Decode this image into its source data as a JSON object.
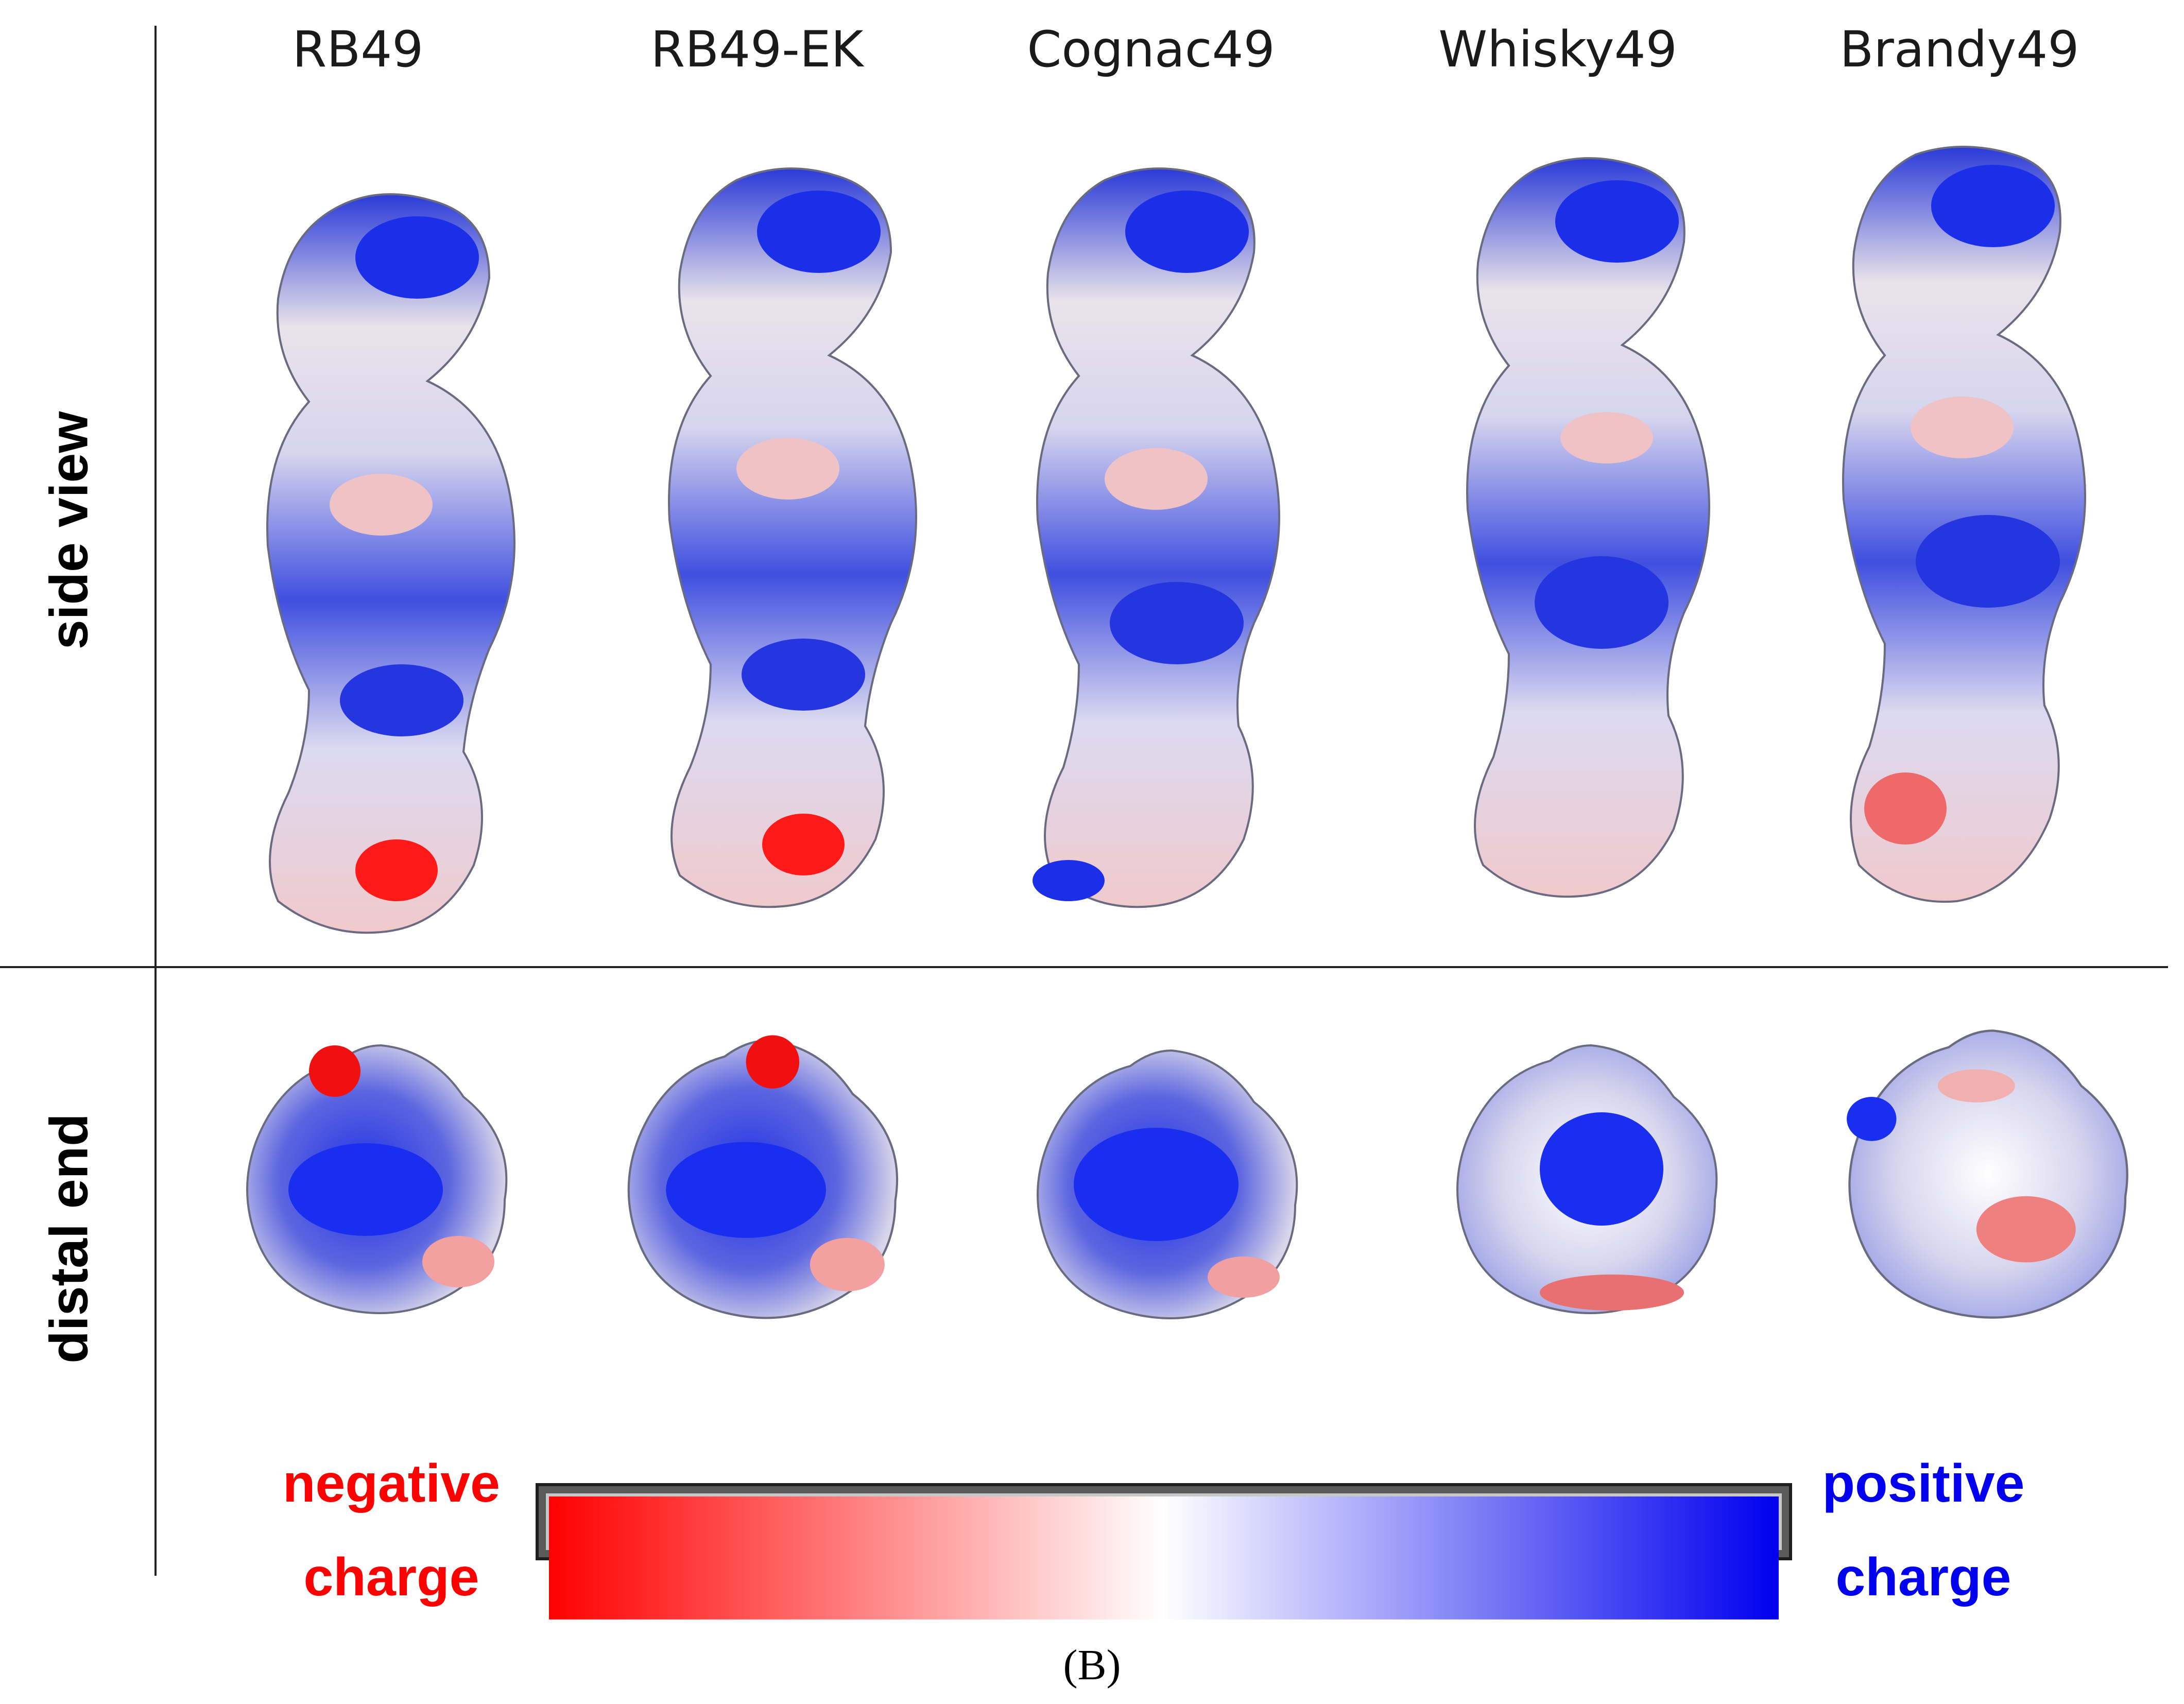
{
  "columns": [
    "RB49",
    "RB49-EK",
    "Cognac49",
    "Whisky49",
    "Brandy49"
  ],
  "rows": {
    "side_view": "side view",
    "distal_end": "distal end"
  },
  "colorbar": {
    "negative_line1": "negative",
    "negative_line2": "charge",
    "positive_line1": "positive",
    "positive_line2": "charge",
    "negative_color": "#ff0000",
    "neutral_color": "#ffffff",
    "positive_color": "#0000ee"
  },
  "panel_label": "(B)"
}
